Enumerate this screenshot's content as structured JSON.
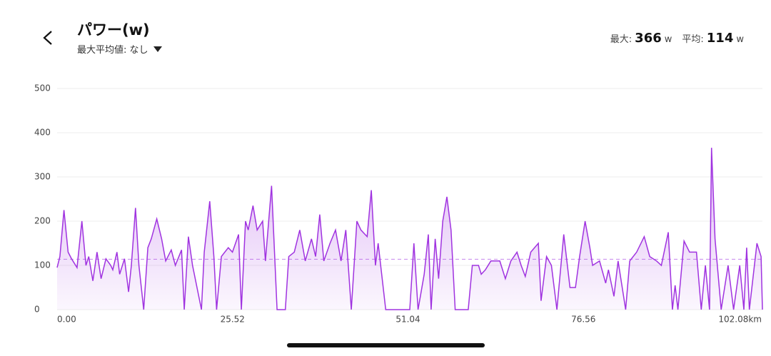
{
  "header": {
    "title": "パワー(w)",
    "selector": "最大平均値: なし",
    "stats": {
      "max_label": "最大:",
      "max_value": 366,
      "max_unit": "w",
      "avg_label": "平均:",
      "avg_value": 114,
      "avg_unit": "w"
    }
  },
  "chart_data": {
    "type": "area",
    "color": "#a033e0",
    "x": [
      0.0,
      0.4,
      1.0,
      1.6,
      2.1,
      2.9,
      3.6,
      4.2,
      4.6,
      5.2,
      5.8,
      6.4,
      7.1,
      7.8,
      8.1,
      8.7,
      9.1,
      9.8,
      10.4,
      10.8,
      11.4,
      11.9,
      12.6,
      13.2,
      13.7,
      14.5,
      15.2,
      15.8,
      16.6,
      17.2,
      18.1,
      18.5,
      19.1,
      19.7,
      21.0,
      21.4,
      22.2,
      22.8,
      23.2,
      23.9,
      24.9,
      25.5,
      26.4,
      26.8,
      27.4,
      27.8,
      28.5,
      29.1,
      29.9,
      30.3,
      31.2,
      32.0,
      33.2,
      33.7,
      34.5,
      35.3,
      36.1,
      37.0,
      37.6,
      38.2,
      38.8,
      39.7,
      40.5,
      41.3,
      42.0,
      42.8,
      43.6,
      44.2,
      45.1,
      45.7,
      46.3,
      46.7,
      47.8,
      51.3,
      51.9,
      52.5,
      53.4,
      54.0,
      54.4,
      55.0,
      55.5,
      56.1,
      56.7,
      57.3,
      57.9,
      59.8,
      60.4,
      61.3,
      61.7,
      62.3,
      63.1,
      64.4,
      65.2,
      66.0,
      66.9,
      67.5,
      68.1,
      68.9,
      70.0,
      70.4,
      71.2,
      71.9,
      72.7,
      73.7,
      74.6,
      75.4,
      76.0,
      76.8,
      77.5,
      77.9,
      78.9,
      79.8,
      80.2,
      81.0,
      81.6,
      82.7,
      83.3,
      84.3,
      85.4,
      86.2,
      87.2,
      87.9,
      88.9,
      89.5,
      89.9,
      90.3,
      91.2,
      92.0,
      93.0,
      93.7,
      94.3,
      94.9,
      95.2,
      95.7,
      96.6,
      97.6,
      98.4,
      99.3,
      99.9,
      100.3,
      100.7,
      101.8,
      102.4,
      102.6
    ],
    "values": [
      95,
      120,
      225,
      130,
      115,
      95,
      200,
      100,
      120,
      65,
      130,
      70,
      115,
      100,
      90,
      130,
      80,
      115,
      40,
      100,
      230,
      100,
      0,
      140,
      160,
      205,
      160,
      110,
      135,
      100,
      135,
      0,
      165,
      100,
      0,
      130,
      245,
      120,
      0,
      120,
      140,
      130,
      170,
      0,
      200,
      180,
      235,
      180,
      200,
      110,
      280,
      0,
      0,
      120,
      130,
      180,
      110,
      160,
      120,
      215,
      110,
      150,
      180,
      110,
      180,
      0,
      200,
      180,
      165,
      270,
      100,
      150,
      0,
      0,
      150,
      0,
      80,
      170,
      0,
      160,
      70,
      200,
      255,
      180,
      0,
      0,
      100,
      100,
      80,
      90,
      110,
      110,
      70,
      110,
      130,
      100,
      75,
      130,
      150,
      20,
      120,
      100,
      0,
      170,
      50,
      50,
      120,
      200,
      140,
      100,
      110,
      60,
      90,
      30,
      110,
      0,
      110,
      130,
      165,
      120,
      110,
      100,
      175,
      0,
      55,
      0,
      155,
      130,
      130,
      0,
      100,
      0,
      366,
      160,
      0,
      100,
      0,
      100,
      0,
      140,
      0,
      150,
      120,
      0
    ],
    "xlim": [
      0,
      102.6
    ],
    "ylim": [
      0,
      500
    ],
    "yticks": [
      0,
      100,
      200,
      300,
      400,
      500
    ],
    "xticks": [
      {
        "value": 0,
        "label": "0.00"
      },
      {
        "value": 25.52,
        "label": "25.52"
      },
      {
        "value": 51.04,
        "label": "51.04"
      },
      {
        "value": 76.56,
        "label": "76.56"
      },
      {
        "value": 102.08,
        "label": "102.08km"
      }
    ],
    "grid": true
  }
}
